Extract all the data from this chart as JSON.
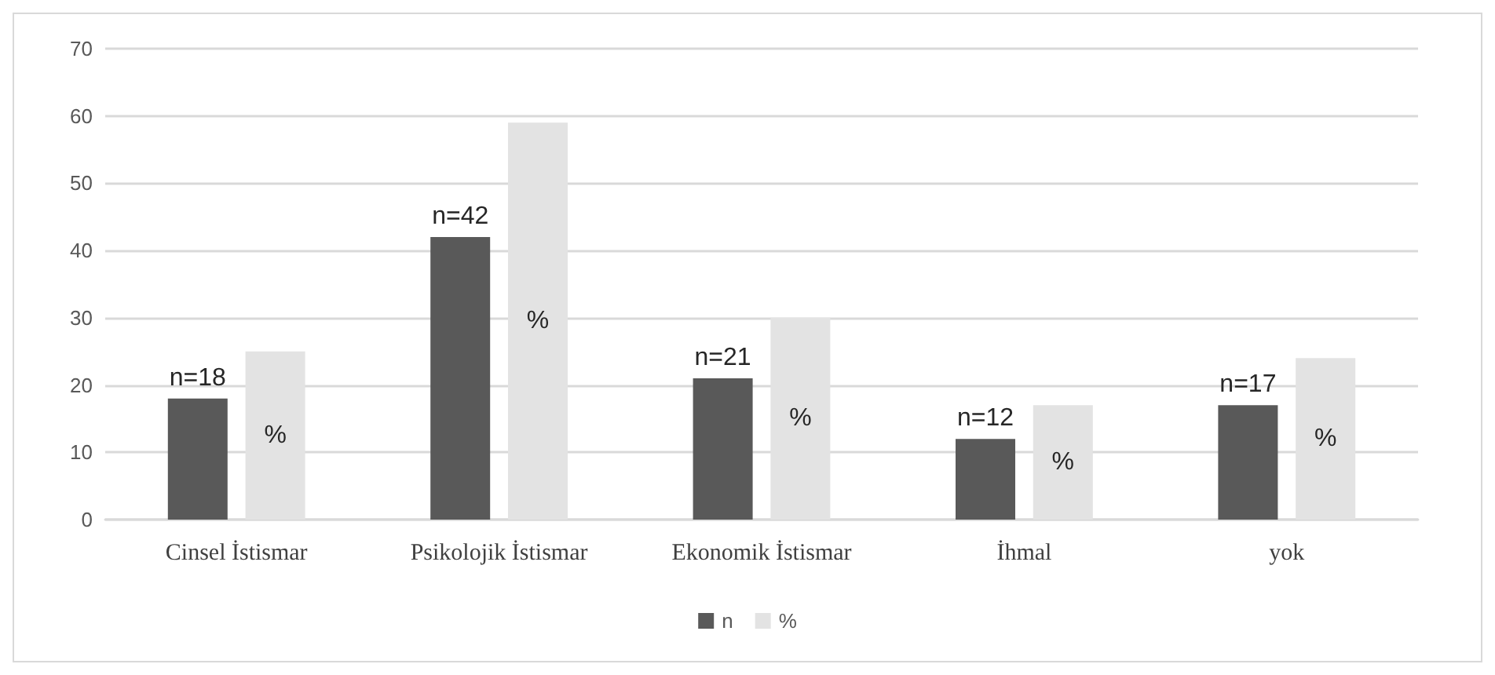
{
  "chart_data": {
    "type": "bar",
    "categories": [
      "Cinsel İstismar",
      "Psikolojik İstismar",
      "Ekonomik İstismar",
      "İhmal",
      "yok"
    ],
    "series": [
      {
        "name": "n",
        "color": "#595959",
        "values": [
          18,
          42,
          21,
          12,
          17
        ],
        "value_labels": [
          "n=18",
          "n=42",
          "n=21",
          "n=12",
          "n=17"
        ]
      },
      {
        "name": "%",
        "color": "#e3e3e3",
        "values": [
          25,
          59,
          30,
          17,
          24
        ],
        "value_labels": [
          "%",
          "%",
          "%",
          "%",
          "%"
        ]
      }
    ],
    "ylim": [
      0,
      70
    ],
    "yticks": [
      0,
      10,
      20,
      30,
      40,
      50,
      60,
      70
    ],
    "grid": "y",
    "legend": "bottom"
  }
}
